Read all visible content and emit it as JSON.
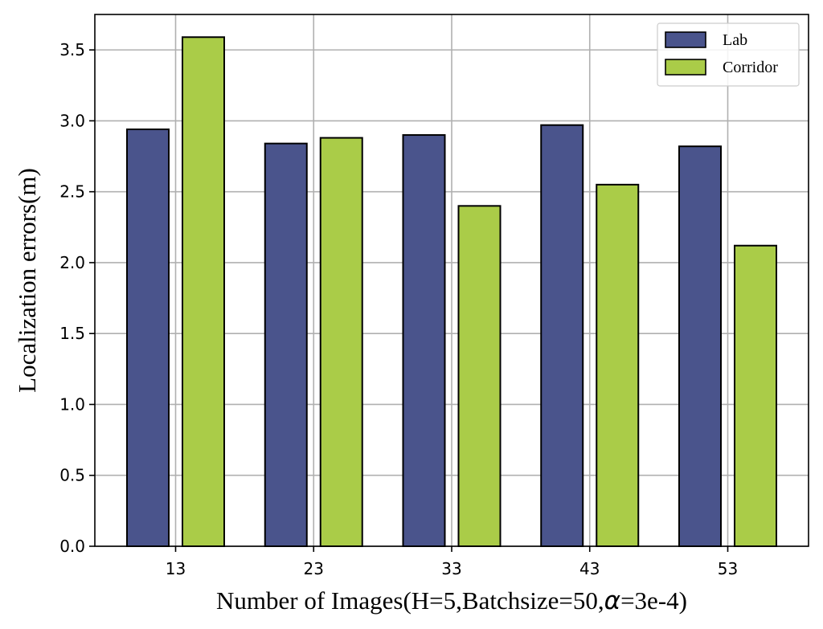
{
  "chart_data": {
    "type": "bar",
    "categories": [
      "13",
      "23",
      "33",
      "43",
      "53"
    ],
    "series": [
      {
        "name": "Lab",
        "color": "#4a548c",
        "values": [
          2.94,
          2.84,
          2.9,
          2.97,
          2.82
        ]
      },
      {
        "name": "Corridor",
        "color": "#aacc48",
        "values": [
          3.59,
          2.88,
          2.4,
          2.55,
          2.12
        ]
      }
    ],
    "xlabel_prefix": "Number of Images(H=5,Batchsize=50,",
    "xlabel_symbol": "α",
    "xlabel_suffix": "=3e-4)",
    "ylabel": "Localization errors(m)",
    "ylim": [
      0,
      3.75
    ],
    "yticks": [
      0.0,
      0.5,
      1.0,
      1.5,
      2.0,
      2.5,
      3.0,
      3.5
    ],
    "grid": true,
    "legend_position": "top-right"
  }
}
